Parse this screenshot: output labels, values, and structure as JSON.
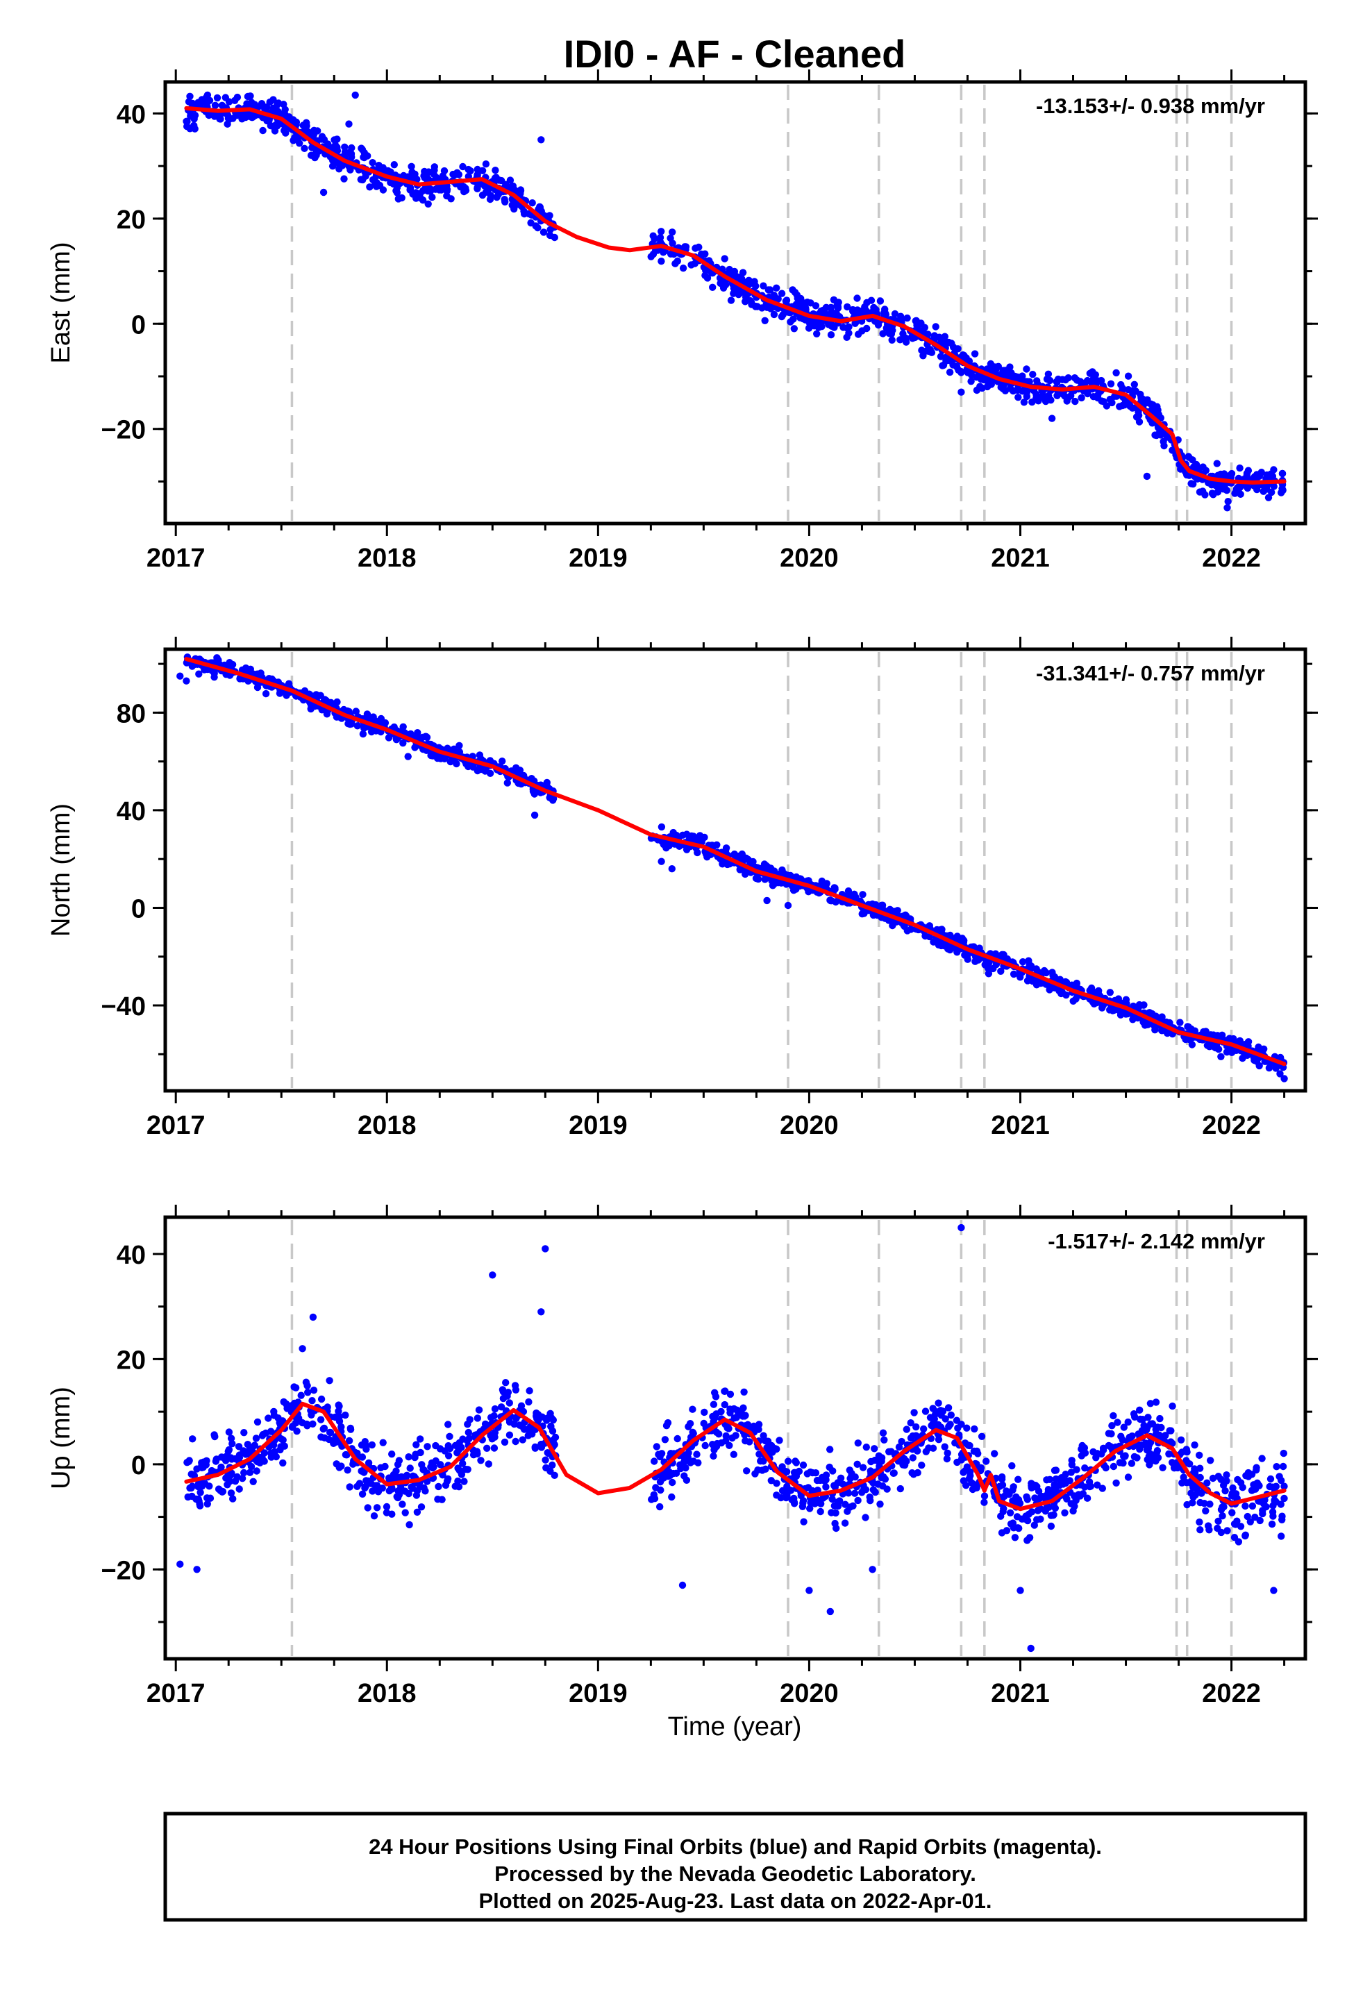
{
  "title": "IDI0  - AF - Cleaned",
  "x_axis_label": "Time (year)",
  "footer": {
    "line1": "24 Hour Positions Using Final Orbits (blue) and Rapid Orbits (magenta).",
    "line2": "Processed by the Nevada Geodetic Laboratory.",
    "line3": "Plotted on 2025-Aug-23. Last data on 2022-Apr-01."
  },
  "colors": {
    "data_points": "#0000ff",
    "model_line": "#ff0000",
    "event_lines": "#c8c8c8",
    "frame": "#000000"
  },
  "chart_data": [
    {
      "type": "scatter",
      "panel": "east",
      "ylabel": "East (mm)",
      "rate_text": "-13.153+/- 0.938 mm/yr",
      "xlim": [
        2016.95,
        2022.35
      ],
      "ylim": [
        -38,
        46
      ],
      "x_ticks": [
        2017,
        2018,
        2019,
        2020,
        2021,
        2022
      ],
      "y_ticks": [
        -20,
        0,
        20,
        40
      ],
      "event_lines": [
        2017.55,
        2019.9,
        2020.33,
        2020.72,
        2020.83,
        2021.74,
        2021.79,
        2022.0
      ],
      "data_gap": [
        2018.8,
        2019.25
      ],
      "data_range": [
        2017.05,
        2022.25
      ],
      "model_curve": [
        [
          2017.05,
          41
        ],
        [
          2017.2,
          40.5
        ],
        [
          2017.35,
          40.8
        ],
        [
          2017.5,
          39
        ],
        [
          2017.65,
          34.5
        ],
        [
          2017.8,
          31
        ],
        [
          2018.0,
          28
        ],
        [
          2018.15,
          26.5
        ],
        [
          2018.3,
          27
        ],
        [
          2018.45,
          27.5
        ],
        [
          2018.6,
          24.5
        ],
        [
          2018.75,
          19.5
        ],
        [
          2018.9,
          16.5
        ],
        [
          2019.05,
          14.5
        ],
        [
          2019.15,
          14
        ],
        [
          2019.3,
          14.8
        ],
        [
          2019.45,
          13
        ],
        [
          2019.6,
          9
        ],
        [
          2019.8,
          4.5
        ],
        [
          2020.0,
          1.5
        ],
        [
          2020.15,
          0.5
        ],
        [
          2020.3,
          1.5
        ],
        [
          2020.45,
          -0.5
        ],
        [
          2020.6,
          -4
        ],
        [
          2020.75,
          -8
        ],
        [
          2020.9,
          -10.5
        ],
        [
          2021.05,
          -12
        ],
        [
          2021.2,
          -12.5
        ],
        [
          2021.35,
          -12
        ],
        [
          2021.5,
          -13.5
        ],
        [
          2021.62,
          -17.5
        ],
        [
          2021.72,
          -21
        ],
        [
          2021.76,
          -26
        ],
        [
          2021.8,
          -28
        ],
        [
          2021.9,
          -29.5
        ],
        [
          2022.0,
          -30
        ],
        [
          2022.1,
          -30.2
        ],
        [
          2022.25,
          -30
        ]
      ],
      "scatter_spread": 2.2,
      "outlier_points": [
        [
          2017.85,
          43.5
        ],
        [
          2017.82,
          38
        ],
        [
          2018.73,
          35
        ],
        [
          2017.7,
          25
        ],
        [
          2021.6,
          -29
        ],
        [
          2021.85,
          -32
        ],
        [
          2021.98,
          -35
        ],
        [
          2020.72,
          -13
        ],
        [
          2021.15,
          -18
        ]
      ]
    },
    {
      "type": "scatter",
      "panel": "north",
      "ylabel": "North (mm)",
      "rate_text": "-31.341+/- 0.757 mm/yr",
      "xlim": [
        2016.95,
        2022.35
      ],
      "ylim": [
        -75,
        106
      ],
      "x_ticks": [
        2017,
        2018,
        2019,
        2020,
        2021,
        2022
      ],
      "y_ticks": [
        -40,
        0,
        40,
        80
      ],
      "event_lines": [
        2017.55,
        2019.9,
        2020.33,
        2020.72,
        2020.83,
        2021.74,
        2021.79,
        2022.0
      ],
      "data_gap": [
        2018.8,
        2019.25
      ],
      "data_range": [
        2017.05,
        2022.25
      ],
      "model_curve": [
        [
          2017.05,
          102
        ],
        [
          2017.3,
          96
        ],
        [
          2017.55,
          89
        ],
        [
          2017.8,
          79
        ],
        [
          2018.0,
          73
        ],
        [
          2018.25,
          64
        ],
        [
          2018.5,
          58
        ],
        [
          2018.75,
          48
        ],
        [
          2019.0,
          40
        ],
        [
          2019.25,
          30
        ],
        [
          2019.5,
          25
        ],
        [
          2019.75,
          15
        ],
        [
          2020.0,
          9
        ],
        [
          2020.25,
          1
        ],
        [
          2020.5,
          -7
        ],
        [
          2020.75,
          -17
        ],
        [
          2021.0,
          -25
        ],
        [
          2021.25,
          -34
        ],
        [
          2021.5,
          -41
        ],
        [
          2021.75,
          -51
        ],
        [
          2022.0,
          -56
        ],
        [
          2022.25,
          -64
        ]
      ],
      "scatter_spread": 2.5,
      "outlier_points": [
        [
          2017.02,
          95
        ],
        [
          2017.05,
          93
        ],
        [
          2018.1,
          62
        ],
        [
          2018.7,
          38
        ],
        [
          2019.3,
          19
        ],
        [
          2019.35,
          16
        ],
        [
          2019.8,
          3
        ],
        [
          2019.9,
          1
        ],
        [
          2020.85,
          -27
        ],
        [
          2022.25,
          -70
        ],
        [
          2022.23,
          -68
        ],
        [
          2021.95,
          -61
        ]
      ]
    },
    {
      "type": "scatter",
      "panel": "up",
      "ylabel": "Up (mm)",
      "rate_text": "-1.517+/- 2.142 mm/yr",
      "xlim": [
        2016.95,
        2022.35
      ],
      "ylim": [
        -37,
        47
      ],
      "x_ticks": [
        2017,
        2018,
        2019,
        2020,
        2021,
        2022
      ],
      "y_ticks": [
        -20,
        0,
        20,
        40
      ],
      "event_lines": [
        2017.55,
        2019.9,
        2020.33,
        2020.72,
        2020.83,
        2021.74,
        2021.79,
        2022.0
      ],
      "data_gap": [
        2018.8,
        2019.25
      ],
      "data_range": [
        2017.05,
        2022.25
      ],
      "model_curve": [
        [
          2017.05,
          -3.3
        ],
        [
          2017.2,
          -2
        ],
        [
          2017.35,
          1
        ],
        [
          2017.5,
          6.5
        ],
        [
          2017.6,
          11.5
        ],
        [
          2017.7,
          10
        ],
        [
          2017.85,
          1
        ],
        [
          2018.0,
          -3.8
        ],
        [
          2018.15,
          -3
        ],
        [
          2018.3,
          -0.5
        ],
        [
          2018.45,
          5.5
        ],
        [
          2018.6,
          10.3
        ],
        [
          2018.72,
          7
        ],
        [
          2018.85,
          -2
        ],
        [
          2019.0,
          -5.5
        ],
        [
          2019.15,
          -4.5
        ],
        [
          2019.3,
          -1
        ],
        [
          2019.45,
          4.5
        ],
        [
          2019.6,
          8.5
        ],
        [
          2019.72,
          6
        ],
        [
          2019.85,
          -1.5
        ],
        [
          2020.0,
          -6
        ],
        [
          2020.15,
          -5
        ],
        [
          2020.3,
          -2.5
        ],
        [
          2020.45,
          2.5
        ],
        [
          2020.6,
          6.5
        ],
        [
          2020.7,
          5
        ],
        [
          2020.8,
          -2
        ],
        [
          2020.83,
          -5
        ],
        [
          2020.86,
          -2
        ],
        [
          2020.9,
          -7
        ],
        [
          2021.0,
          -8.5
        ],
        [
          2021.15,
          -7
        ],
        [
          2021.3,
          -2.5
        ],
        [
          2021.45,
          2.5
        ],
        [
          2021.6,
          5.5
        ],
        [
          2021.72,
          3
        ],
        [
          2021.8,
          -2
        ],
        [
          2021.9,
          -5.5
        ],
        [
          2022.0,
          -7.5
        ],
        [
          2022.1,
          -6.5
        ],
        [
          2022.25,
          -5
        ]
      ],
      "scatter_spread": 4.5,
      "outlier_points": [
        [
          2017.6,
          22
        ],
        [
          2017.65,
          28
        ],
        [
          2017.02,
          -19
        ],
        [
          2017.1,
          -20
        ],
        [
          2018.5,
          36
        ],
        [
          2018.75,
          41
        ],
        [
          2018.73,
          29
        ],
        [
          2020.72,
          45
        ],
        [
          2021.05,
          -35
        ],
        [
          2020.1,
          -28
        ],
        [
          2019.4,
          -23
        ],
        [
          2020.0,
          -24
        ],
        [
          2022.2,
          -24
        ],
        [
          2021.0,
          -24
        ],
        [
          2020.3,
          -20
        ]
      ]
    }
  ]
}
